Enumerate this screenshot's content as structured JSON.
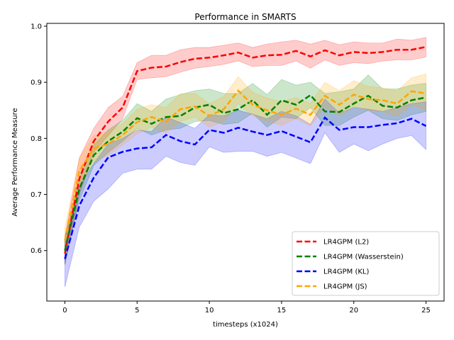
{
  "chart_data": {
    "type": "line",
    "title": "Performance in SMARTS",
    "xlabel": "timesteps (x1024)",
    "ylabel": "Average Performance Measure",
    "xlim": [
      -1.25,
      26.25
    ],
    "ylim": [
      0.51,
      1.005
    ],
    "xticks": [
      0,
      5,
      10,
      15,
      20,
      25
    ],
    "xtick_labels": [
      "0",
      "5",
      "10",
      "15",
      "20",
      "25"
    ],
    "yticks": [
      0.6,
      0.7,
      0.8,
      0.9,
      1.0
    ],
    "ytick_labels": [
      "0.6",
      "0.7",
      "0.8",
      "0.9",
      "1.0"
    ],
    "grid": false,
    "legend_position": "lower-right",
    "x": [
      0,
      1,
      2,
      3,
      4,
      5,
      6,
      7,
      8,
      9,
      10,
      11,
      12,
      13,
      14,
      15,
      16,
      17,
      18,
      19,
      20,
      21,
      22,
      23,
      24,
      25
    ],
    "series": [
      {
        "name": "LR4GPM (L2)",
        "color": "#ff0000",
        "values": [
          0.595,
          0.728,
          0.795,
          0.83,
          0.855,
          0.92,
          0.926,
          0.928,
          0.936,
          0.942,
          0.944,
          0.948,
          0.953,
          0.944,
          0.948,
          0.949,
          0.956,
          0.946,
          0.957,
          0.948,
          0.954,
          0.952,
          0.954,
          0.958,
          0.958,
          0.963
        ],
        "lower": [
          0.575,
          0.7,
          0.775,
          0.805,
          0.835,
          0.905,
          0.908,
          0.91,
          0.918,
          0.925,
          0.928,
          0.932,
          0.938,
          0.928,
          0.93,
          0.93,
          0.938,
          0.925,
          0.94,
          0.93,
          0.935,
          0.933,
          0.938,
          0.94,
          0.94,
          0.945
        ],
        "upper": [
          0.625,
          0.765,
          0.818,
          0.855,
          0.875,
          0.935,
          0.948,
          0.948,
          0.958,
          0.962,
          0.962,
          0.966,
          0.97,
          0.962,
          0.968,
          0.972,
          0.975,
          0.968,
          0.975,
          0.967,
          0.972,
          0.97,
          0.97,
          0.977,
          0.975,
          0.98
        ]
      },
      {
        "name": "LR4GPM (Wasserstein)",
        "color": "#008000",
        "values": [
          0.6,
          0.71,
          0.77,
          0.795,
          0.812,
          0.836,
          0.826,
          0.838,
          0.84,
          0.855,
          0.86,
          0.845,
          0.852,
          0.868,
          0.842,
          0.868,
          0.86,
          0.877,
          0.848,
          0.847,
          0.862,
          0.876,
          0.858,
          0.855,
          0.868,
          0.873
        ],
        "lower": [
          0.575,
          0.69,
          0.752,
          0.775,
          0.795,
          0.818,
          0.806,
          0.815,
          0.818,
          0.83,
          0.832,
          0.825,
          0.828,
          0.845,
          0.82,
          0.838,
          0.835,
          0.855,
          0.823,
          0.823,
          0.838,
          0.85,
          0.835,
          0.832,
          0.842,
          0.848
        ],
        "upper": [
          0.62,
          0.73,
          0.788,
          0.815,
          0.832,
          0.862,
          0.848,
          0.87,
          0.878,
          0.885,
          0.888,
          0.88,
          0.88,
          0.898,
          0.878,
          0.905,
          0.895,
          0.9,
          0.88,
          0.883,
          0.888,
          0.913,
          0.888,
          0.888,
          0.895,
          0.898
        ]
      },
      {
        "name": "LR4GPM (KL)",
        "color": "#0000ff",
        "values": [
          0.585,
          0.68,
          0.73,
          0.766,
          0.776,
          0.782,
          0.784,
          0.806,
          0.795,
          0.789,
          0.815,
          0.81,
          0.819,
          0.812,
          0.806,
          0.813,
          0.803,
          0.793,
          0.837,
          0.815,
          0.82,
          0.82,
          0.824,
          0.827,
          0.835,
          0.822
        ],
        "lower": [
          0.535,
          0.642,
          0.688,
          0.71,
          0.738,
          0.745,
          0.745,
          0.768,
          0.757,
          0.752,
          0.785,
          0.775,
          0.777,
          0.777,
          0.768,
          0.775,
          0.765,
          0.755,
          0.81,
          0.775,
          0.79,
          0.778,
          0.79,
          0.8,
          0.805,
          0.78
        ],
        "upper": [
          0.625,
          0.715,
          0.755,
          0.79,
          0.8,
          0.815,
          0.812,
          0.838,
          0.828,
          0.818,
          0.842,
          0.84,
          0.85,
          0.843,
          0.835,
          0.848,
          0.84,
          0.825,
          0.87,
          0.845,
          0.855,
          0.852,
          0.848,
          0.855,
          0.862,
          0.865
        ]
      },
      {
        "name": "LR4GPM (JS)",
        "color": "#ffa500",
        "values": [
          0.618,
          0.742,
          0.782,
          0.79,
          0.806,
          0.829,
          0.838,
          0.83,
          0.852,
          0.857,
          0.84,
          0.852,
          0.885,
          0.86,
          0.85,
          0.842,
          0.853,
          0.842,
          0.876,
          0.86,
          0.878,
          0.87,
          0.868,
          0.862,
          0.884,
          0.88
        ],
        "lower": [
          0.595,
          0.718,
          0.758,
          0.77,
          0.788,
          0.808,
          0.82,
          0.81,
          0.83,
          0.838,
          0.82,
          0.83,
          0.862,
          0.84,
          0.83,
          0.823,
          0.835,
          0.822,
          0.856,
          0.84,
          0.857,
          0.85,
          0.848,
          0.84,
          0.86,
          0.85
        ],
        "upper": [
          0.64,
          0.765,
          0.805,
          0.812,
          0.826,
          0.852,
          0.86,
          0.855,
          0.88,
          0.88,
          0.862,
          0.875,
          0.91,
          0.882,
          0.872,
          0.865,
          0.873,
          0.862,
          0.9,
          0.885,
          0.903,
          0.893,
          0.89,
          0.885,
          0.908,
          0.915
        ]
      }
    ]
  }
}
